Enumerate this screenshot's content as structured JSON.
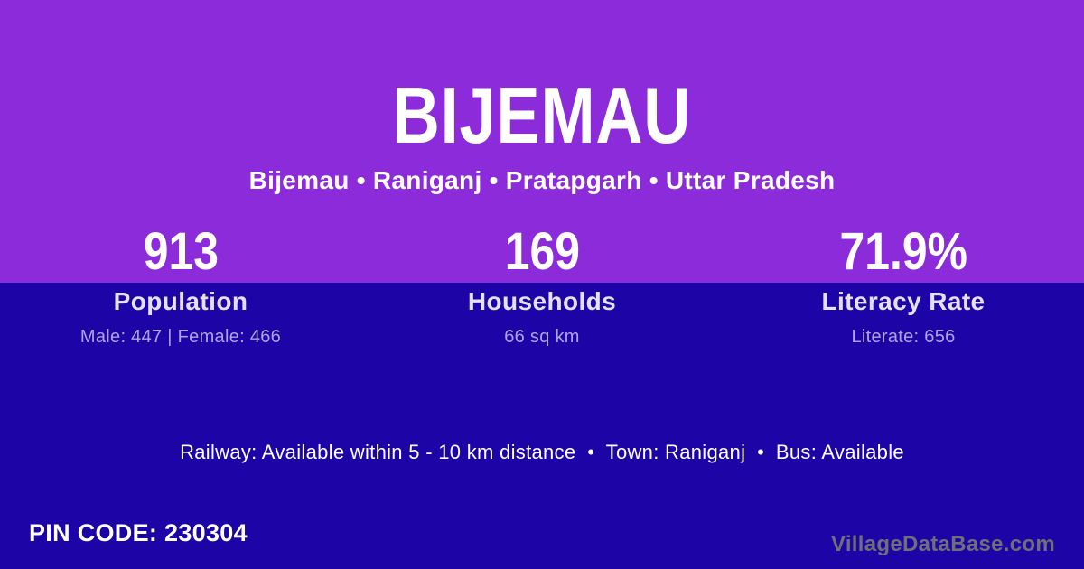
{
  "theme": {
    "bg_top": "#8C2BD9",
    "bg_bottom": "#1D04A6",
    "text_white": "#FFFFFF",
    "text_label": "#E6E0F4",
    "text_detail": "#B1A3E2",
    "text_watermark": "#6F6F78"
  },
  "header": {
    "title": "BIJEMAU",
    "subtitle": "Bijemau • Raniganj • Pratapgarh • Uttar Pradesh"
  },
  "stats": [
    {
      "value": "913",
      "label": "Population",
      "detail": "Male: 447 | Female: 466"
    },
    {
      "value": "169",
      "label": "Households",
      "detail": "66 sq km"
    },
    {
      "value": "71.9%",
      "label": "Literacy Rate",
      "detail": "Literate: 656"
    }
  ],
  "info_line": "Railway: Available within 5 - 10 km distance  •  Town: Raniganj  •  Bus: Available",
  "footer": {
    "pin_code": "PIN CODE: 230304",
    "watermark": "VillageDataBase.com"
  }
}
